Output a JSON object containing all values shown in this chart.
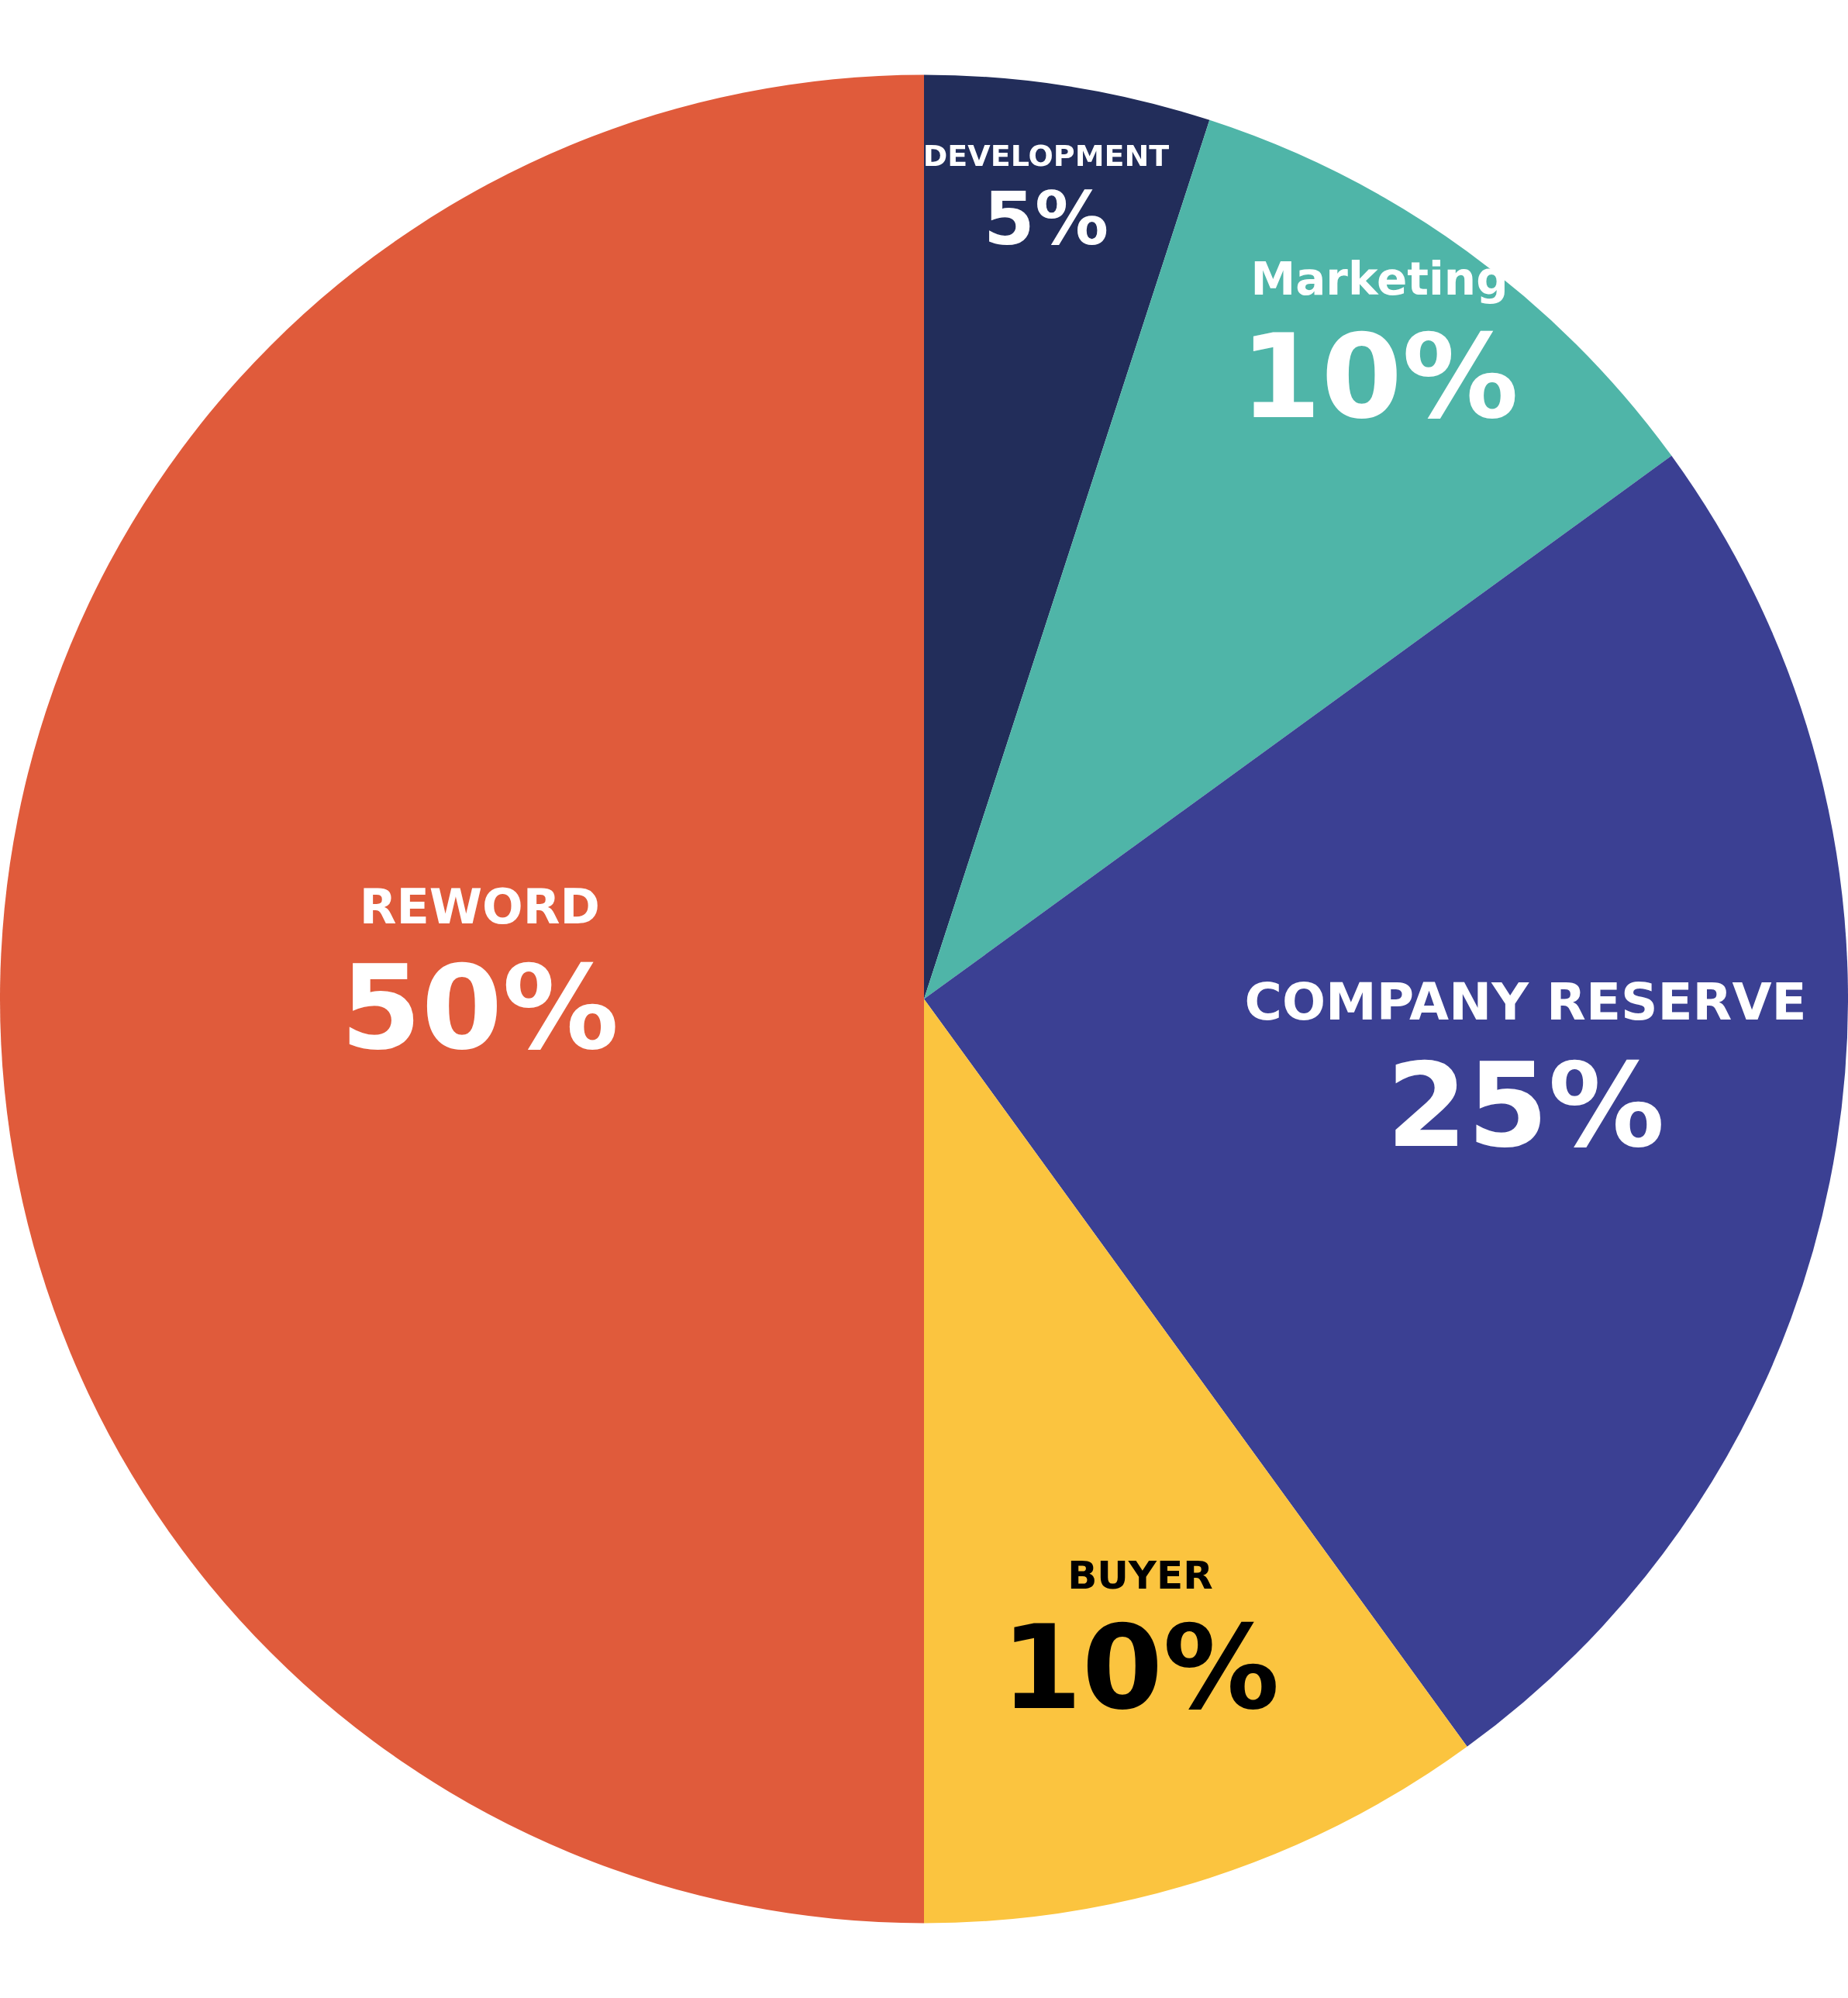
{
  "chart_data": {
    "type": "pie",
    "categories": [
      "DEVELOPMENT",
      "Marketing",
      "COMPANY RESERVE",
      "BUYER",
      "REWORD"
    ],
    "values": [
      5,
      10,
      25,
      10,
      50
    ],
    "colors": [
      "#222d5a",
      "#4fb5a8",
      "#3b4093",
      "#fbc43f",
      "#e05b3b"
    ],
    "value_labels": [
      "5%",
      "10%",
      "25%",
      "10%",
      "50%"
    ],
    "legend": false
  }
}
